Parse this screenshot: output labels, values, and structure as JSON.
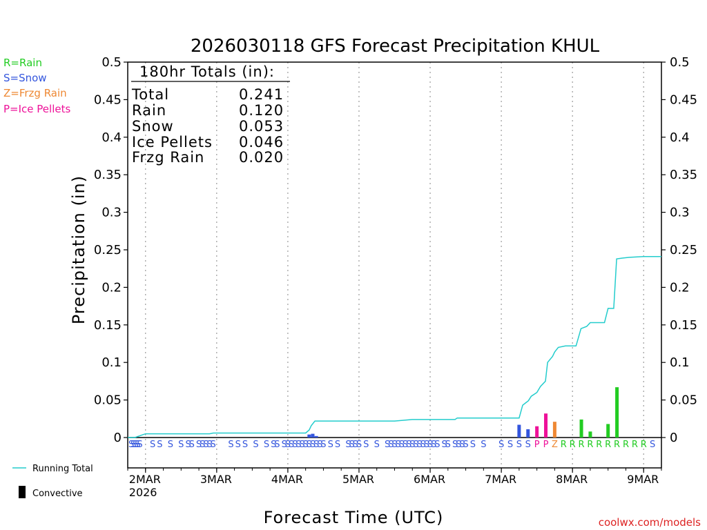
{
  "chart_data": {
    "type": "bar",
    "title": "2026030118 GFS Forecast Precipitation KHUL",
    "xlabel": "Forecast Time (UTC)",
    "ylabel": "Precipitation (in)",
    "ylim": [
      0,
      0.5
    ],
    "y_ticks": [
      "0.5",
      "0.45",
      "0.4",
      "0.35",
      "0.3",
      "0.25",
      "0.2",
      "0.15",
      "0.1",
      "0.05",
      "0"
    ],
    "x_range_days": [
      -0.25,
      7.25
    ],
    "x_ticks": [
      {
        "day": 0,
        "label": "2MAR",
        "sublabel": "2026"
      },
      {
        "day": 1,
        "label": "3MAR",
        "sublabel": ""
      },
      {
        "day": 2,
        "label": "4MAR",
        "sublabel": ""
      },
      {
        "day": 3,
        "label": "5MAR",
        "sublabel": ""
      },
      {
        "day": 4,
        "label": "6MAR",
        "sublabel": ""
      },
      {
        "day": 5,
        "label": "7MAR",
        "sublabel": ""
      },
      {
        "day": 6,
        "label": "8MAR",
        "sublabel": ""
      },
      {
        "day": 7,
        "label": "9MAR",
        "sublabel": ""
      }
    ],
    "type_legend": [
      {
        "code": "R",
        "label": "R=Rain",
        "color": "#22cc22"
      },
      {
        "code": "S",
        "label": "S=Snow",
        "color": "#3355dd"
      },
      {
        "code": "Z",
        "label": "Z=Frzg Rain",
        "color": "#ee8833"
      },
      {
        "code": "P",
        "label": "P=Ice Pellets",
        "color": "#ee1199"
      }
    ],
    "legend_bottom": {
      "running_total": "Running Total",
      "convective": "Convective"
    },
    "totals_box": {
      "header": "180hr Totals (in):",
      "rows": [
        {
          "label": "Total",
          "value": "0.241"
        },
        {
          "label": "Rain",
          "value": "0.120"
        },
        {
          "label": "Snow",
          "value": "0.053"
        },
        {
          "label": "Ice Pellets",
          "value": "0.046"
        },
        {
          "label": "Frzg Rain",
          "value": "0.020"
        }
      ]
    },
    "running_total": [
      [
        -0.25,
        0
      ],
      [
        -0.15,
        0
      ],
      [
        -0.06,
        0.003
      ],
      [
        0.0,
        0.005
      ],
      [
        0.5,
        0.005
      ],
      [
        0.9,
        0.005
      ],
      [
        0.95,
        0.006
      ],
      [
        1.5,
        0.006
      ],
      [
        2.0,
        0.006
      ],
      [
        2.25,
        0.006
      ],
      [
        2.3,
        0.01
      ],
      [
        2.33,
        0.016
      ],
      [
        2.38,
        0.022
      ],
      [
        3.0,
        0.022
      ],
      [
        3.5,
        0.022
      ],
      [
        3.75,
        0.024
      ],
      [
        4.0,
        0.024
      ],
      [
        4.35,
        0.024
      ],
      [
        4.38,
        0.026
      ],
      [
        5.0,
        0.026
      ],
      [
        5.25,
        0.026
      ],
      [
        5.3,
        0.043
      ],
      [
        5.38,
        0.049
      ],
      [
        5.42,
        0.055
      ],
      [
        5.5,
        0.06
      ],
      [
        5.55,
        0.068
      ],
      [
        5.62,
        0.075
      ],
      [
        5.65,
        0.1
      ],
      [
        5.72,
        0.108
      ],
      [
        5.75,
        0.114
      ],
      [
        5.8,
        0.12
      ],
      [
        5.9,
        0.122
      ],
      [
        6.05,
        0.122
      ],
      [
        6.12,
        0.145
      ],
      [
        6.2,
        0.148
      ],
      [
        6.25,
        0.153
      ],
      [
        6.45,
        0.153
      ],
      [
        6.5,
        0.172
      ],
      [
        6.58,
        0.172
      ],
      [
        6.62,
        0.238
      ],
      [
        6.7,
        0.239
      ],
      [
        6.8,
        0.24
      ],
      [
        7.0,
        0.241
      ],
      [
        7.25,
        0.241
      ]
    ],
    "bars": [
      {
        "x": 2.3,
        "value": 0.004,
        "type": "S"
      },
      {
        "x": 2.35,
        "value": 0.005,
        "type": "S"
      },
      {
        "x": 2.4,
        "value": 0.002,
        "type": "S"
      },
      {
        "x": 5.25,
        "value": 0.017,
        "type": "S"
      },
      {
        "x": 5.375,
        "value": 0.011,
        "type": "S"
      },
      {
        "x": 5.5,
        "value": 0.015,
        "type": "P"
      },
      {
        "x": 5.625,
        "value": 0.032,
        "type": "P"
      },
      {
        "x": 5.75,
        "value": 0.021,
        "type": "Z"
      },
      {
        "x": 6.125,
        "value": 0.024,
        "type": "R"
      },
      {
        "x": 6.25,
        "value": 0.008,
        "type": "R"
      },
      {
        "x": 6.5,
        "value": 0.018,
        "type": "R"
      },
      {
        "x": 6.625,
        "value": 0.067,
        "type": "R"
      }
    ],
    "precip_codes": [
      {
        "x": -0.2,
        "code": "S"
      },
      {
        "x": -0.17,
        "code": "S"
      },
      {
        "x": -0.14,
        "code": "S"
      },
      {
        "x": -0.11,
        "code": "S"
      },
      {
        "x": -0.08,
        "code": "S"
      },
      {
        "x": 0.1,
        "code": "S"
      },
      {
        "x": 0.2,
        "code": "S"
      },
      {
        "x": 0.35,
        "code": "S"
      },
      {
        "x": 0.5,
        "code": "S"
      },
      {
        "x": 0.6,
        "code": "S"
      },
      {
        "x": 0.65,
        "code": "S"
      },
      {
        "x": 0.75,
        "code": "S"
      },
      {
        "x": 0.8,
        "code": "S"
      },
      {
        "x": 0.85,
        "code": "S"
      },
      {
        "x": 0.9,
        "code": "S"
      },
      {
        "x": 0.95,
        "code": "S"
      },
      {
        "x": 1.2,
        "code": "S"
      },
      {
        "x": 1.3,
        "code": "S"
      },
      {
        "x": 1.4,
        "code": "S"
      },
      {
        "x": 1.55,
        "code": "S"
      },
      {
        "x": 1.7,
        "code": "S"
      },
      {
        "x": 1.8,
        "code": "S"
      },
      {
        "x": 1.85,
        "code": "S"
      },
      {
        "x": 1.95,
        "code": "S"
      },
      {
        "x": 2.0,
        "code": "S"
      },
      {
        "x": 2.05,
        "code": "S"
      },
      {
        "x": 2.1,
        "code": "S"
      },
      {
        "x": 2.15,
        "code": "S"
      },
      {
        "x": 2.2,
        "code": "S"
      },
      {
        "x": 2.25,
        "code": "S"
      },
      {
        "x": 2.3,
        "code": "S"
      },
      {
        "x": 2.35,
        "code": "S"
      },
      {
        "x": 2.4,
        "code": "S"
      },
      {
        "x": 2.45,
        "code": "S"
      },
      {
        "x": 2.5,
        "code": "S"
      },
      {
        "x": 2.6,
        "code": "S"
      },
      {
        "x": 2.7,
        "code": "S"
      },
      {
        "x": 2.85,
        "code": "S"
      },
      {
        "x": 2.9,
        "code": "S"
      },
      {
        "x": 2.95,
        "code": "S"
      },
      {
        "x": 3.0,
        "code": "S"
      },
      {
        "x": 3.1,
        "code": "S"
      },
      {
        "x": 3.25,
        "code": "S"
      },
      {
        "x": 3.4,
        "code": "S"
      },
      {
        "x": 3.45,
        "code": "S"
      },
      {
        "x": 3.5,
        "code": "S"
      },
      {
        "x": 3.55,
        "code": "S"
      },
      {
        "x": 3.6,
        "code": "S"
      },
      {
        "x": 3.65,
        "code": "S"
      },
      {
        "x": 3.7,
        "code": "S"
      },
      {
        "x": 3.75,
        "code": "S"
      },
      {
        "x": 3.8,
        "code": "S"
      },
      {
        "x": 3.85,
        "code": "S"
      },
      {
        "x": 3.9,
        "code": "S"
      },
      {
        "x": 3.95,
        "code": "S"
      },
      {
        "x": 4.0,
        "code": "S"
      },
      {
        "x": 4.05,
        "code": "S"
      },
      {
        "x": 4.1,
        "code": "S"
      },
      {
        "x": 4.2,
        "code": "S"
      },
      {
        "x": 4.25,
        "code": "S"
      },
      {
        "x": 4.35,
        "code": "S"
      },
      {
        "x": 4.4,
        "code": "S"
      },
      {
        "x": 4.45,
        "code": "S"
      },
      {
        "x": 4.5,
        "code": "S"
      },
      {
        "x": 4.6,
        "code": "S"
      },
      {
        "x": 4.75,
        "code": "S"
      },
      {
        "x": 5.0,
        "code": "S"
      },
      {
        "x": 5.125,
        "code": "S"
      },
      {
        "x": 5.25,
        "code": "S"
      },
      {
        "x": 5.375,
        "code": "S"
      },
      {
        "x": 5.5,
        "code": "P"
      },
      {
        "x": 5.625,
        "code": "P"
      },
      {
        "x": 5.75,
        "code": "Z"
      },
      {
        "x": 5.875,
        "code": "R"
      },
      {
        "x": 6.0,
        "code": "R"
      },
      {
        "x": 6.125,
        "code": "R"
      },
      {
        "x": 6.25,
        "code": "R"
      },
      {
        "x": 6.375,
        "code": "R"
      },
      {
        "x": 6.5,
        "code": "R"
      },
      {
        "x": 6.625,
        "code": "R"
      },
      {
        "x": 6.75,
        "code": "R"
      },
      {
        "x": 6.875,
        "code": "R"
      },
      {
        "x": 7.0,
        "code": "R"
      },
      {
        "x": 7.125,
        "code": "S"
      }
    ],
    "colors": {
      "running_total": "#22cccc",
      "axis": "#000000",
      "grid": "#999999",
      "convective": "#000000",
      "credit": "#dd2222"
    }
  },
  "credit": "coolwx.com/models"
}
